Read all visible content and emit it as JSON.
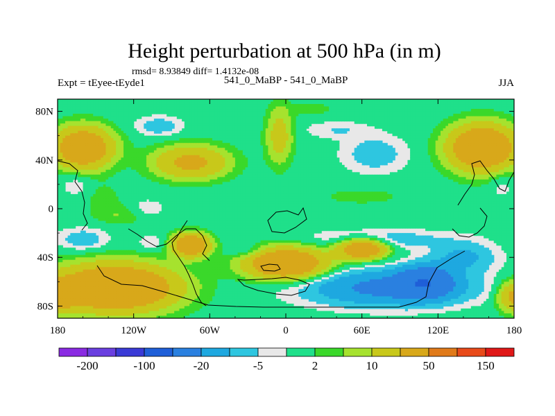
{
  "chart_data": {
    "type": "heatmap",
    "title": "Height perturbation at 500 hPa (in m)",
    "stats_line": "rmsd= 8.93849 diff= 1.4132e-08",
    "left_label": "Expt = tEyee-tEyde1",
    "center_label": "541_0_MaBP - 541_0_MaBP",
    "right_label": "JJA",
    "xlabel": "",
    "ylabel": "",
    "xlim": [
      -180,
      180
    ],
    "ylim": [
      -90,
      90
    ],
    "x_ticks": [
      {
        "value": -180,
        "label": "180"
      },
      {
        "value": -120,
        "label": "120W"
      },
      {
        "value": -60,
        "label": "60W"
      },
      {
        "value": 0,
        "label": "0"
      },
      {
        "value": 60,
        "label": "60E"
      },
      {
        "value": 120,
        "label": "120E"
      },
      {
        "value": 180,
        "label": "180"
      }
    ],
    "y_ticks": [
      {
        "value": 80,
        "label": "80N"
      },
      {
        "value": 40,
        "label": "40N"
      },
      {
        "value": 0,
        "label": "0"
      },
      {
        "value": -40,
        "label": "40S"
      },
      {
        "value": -80,
        "label": "80S"
      }
    ],
    "colorbar": {
      "colors": [
        "#8a2be2",
        "#6a3fe0",
        "#3a3ad6",
        "#1f5fd8",
        "#2a80e0",
        "#1ea8e0",
        "#2ec6e0",
        "#e8e8e8",
        "#1fe08a",
        "#3ad82a",
        "#a6e22e",
        "#c8c81a",
        "#d8a81a",
        "#e07a1a",
        "#e84a1a",
        "#e01818"
      ],
      "labels": [
        {
          "after_index": 0,
          "text": "-200"
        },
        {
          "after_index": 2,
          "text": "-100"
        },
        {
          "after_index": 4,
          "text": "-20"
        },
        {
          "after_index": 6,
          "text": "-5"
        },
        {
          "after_index": 8,
          "text": "2"
        },
        {
          "after_index": 10,
          "text": "10"
        },
        {
          "after_index": 12,
          "text": "50"
        },
        {
          "after_index": 14,
          "text": "150"
        }
      ]
    },
    "features": [
      {
        "lon": -160,
        "lat": 50,
        "rx": 22,
        "ry": 16,
        "amp": 40
      },
      {
        "lon": -75,
        "lat": 38,
        "rx": 28,
        "ry": 13,
        "amp": 25
      },
      {
        "lon": -100,
        "lat": 68,
        "rx": 18,
        "ry": 8,
        "amp": -8
      },
      {
        "lon": -5,
        "lat": 60,
        "rx": 10,
        "ry": 22,
        "amp": 15
      },
      {
        "lon": 20,
        "lat": 82,
        "rx": 18,
        "ry": 5,
        "amp": 4
      },
      {
        "lon": 40,
        "lat": 65,
        "rx": 25,
        "ry": 7,
        "amp": -5
      },
      {
        "lon": 70,
        "lat": 45,
        "rx": 25,
        "ry": 15,
        "amp": -8
      },
      {
        "lon": 155,
        "lat": 50,
        "rx": 25,
        "ry": 18,
        "amp": 45
      },
      {
        "lon": 60,
        "lat": 10,
        "rx": 40,
        "ry": 8,
        "amp": 3
      },
      {
        "lon": -145,
        "lat": 10,
        "rx": 18,
        "ry": 12,
        "amp": 3
      },
      {
        "lon": -110,
        "lat": 0,
        "rx": 14,
        "ry": 8,
        "amp": -5
      },
      {
        "lon": -130,
        "lat": -5,
        "rx": 22,
        "ry": 8,
        "amp": 5
      },
      {
        "lon": -165,
        "lat": 20,
        "rx": 12,
        "ry": 10,
        "amp": -5
      },
      {
        "lon": -160,
        "lat": -25,
        "rx": 20,
        "ry": 9,
        "amp": -8
      },
      {
        "lon": -105,
        "lat": -28,
        "rx": 12,
        "ry": 7,
        "amp": -5
      },
      {
        "lon": -75,
        "lat": -30,
        "rx": 14,
        "ry": 9,
        "amp": 40
      },
      {
        "lon": -30,
        "lat": -35,
        "rx": 15,
        "ry": 6,
        "amp": -6
      },
      {
        "lon": 0,
        "lat": -45,
        "rx": 30,
        "ry": 12,
        "amp": 45
      },
      {
        "lon": 75,
        "lat": -25,
        "rx": 55,
        "ry": 8,
        "amp": -8
      },
      {
        "lon": 60,
        "lat": -33,
        "rx": 18,
        "ry": 8,
        "amp": 40
      },
      {
        "lon": 140,
        "lat": -40,
        "rx": 25,
        "ry": 12,
        "amp": -12
      },
      {
        "lon": 80,
        "lat": -65,
        "rx": 60,
        "ry": 14,
        "amp": -25
      },
      {
        "lon": 110,
        "lat": -60,
        "rx": 20,
        "ry": 12,
        "amp": -35
      },
      {
        "lon": -135,
        "lat": -65,
        "rx": 45,
        "ry": 18,
        "amp": 50
      },
      {
        "lon": 180,
        "lat": -72,
        "rx": 12,
        "ry": 12,
        "amp": 25
      },
      {
        "lon": -180,
        "lat": -72,
        "rx": 12,
        "ry": 12,
        "amp": 25
      },
      {
        "lon": 170,
        "lat": 20,
        "rx": 10,
        "ry": 12,
        "amp": -4
      }
    ]
  }
}
